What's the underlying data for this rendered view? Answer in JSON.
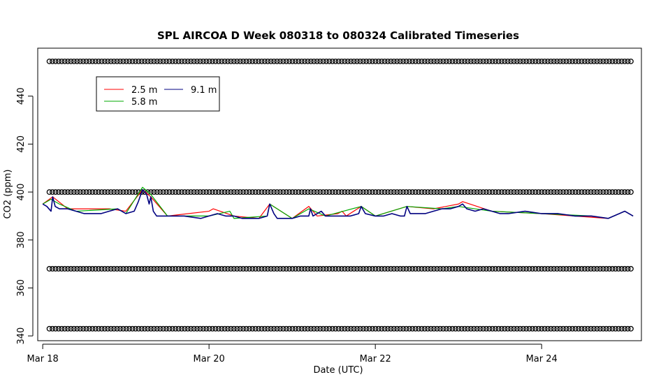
{
  "chart_data": {
    "type": "line",
    "title": "SPL AIRCOA D  Week 080318 to 080324  Calibrated Timeseries",
    "xlabel": "Date (UTC)",
    "ylabel": "CO2 (ppm)",
    "xlim_days": [
      17.94,
      25.2
    ],
    "ylim": [
      338,
      460
    ],
    "x_ticks": [
      {
        "day": 18,
        "label": "Mar 18"
      },
      {
        "day": 20,
        "label": "Mar 20"
      },
      {
        "day": 22,
        "label": "Mar 22"
      },
      {
        "day": 24,
        "label": "Mar 24"
      }
    ],
    "y_ticks": [
      340,
      360,
      380,
      400,
      420,
      440
    ],
    "legend": {
      "position": "top-left",
      "entries": [
        {
          "label": "2.5 m",
          "color": "#ff0000"
        },
        {
          "label": "9.1 m",
          "color": "#000080"
        },
        {
          "label": "5.8 m",
          "color": "#00aa00"
        }
      ]
    },
    "reference_markers": {
      "symbol": "open-circle",
      "x_start_day": 18.08,
      "x_end_day": 25.1,
      "rows": [
        {
          "value": 454.5
        },
        {
          "value": 400
        },
        {
          "value": 368
        },
        {
          "value": 343
        }
      ]
    },
    "series": [
      {
        "name": "9.1 m",
        "color": "#000080",
        "points": [
          [
            18.0,
            395
          ],
          [
            18.05,
            394
          ],
          [
            18.1,
            392
          ],
          [
            18.12,
            398
          ],
          [
            18.15,
            394
          ],
          [
            18.2,
            393
          ],
          [
            18.3,
            393
          ],
          [
            18.4,
            392
          ],
          [
            18.5,
            391
          ],
          [
            18.6,
            391
          ],
          [
            18.7,
            391
          ],
          [
            18.8,
            392
          ],
          [
            18.9,
            393
          ],
          [
            19.0,
            391
          ],
          [
            19.1,
            392
          ],
          [
            19.15,
            396
          ],
          [
            19.2,
            401
          ],
          [
            19.25,
            399
          ],
          [
            19.28,
            395
          ],
          [
            19.3,
            398
          ],
          [
            19.33,
            392
          ],
          [
            19.37,
            390
          ],
          [
            19.5,
            390
          ],
          [
            19.7,
            390
          ],
          [
            19.9,
            389
          ],
          [
            20.0,
            390
          ],
          [
            20.1,
            391
          ],
          [
            20.2,
            390
          ],
          [
            20.3,
            390
          ],
          [
            20.4,
            389
          ],
          [
            20.5,
            389
          ],
          [
            20.6,
            389
          ],
          [
            20.7,
            390
          ],
          [
            20.73,
            395
          ],
          [
            20.78,
            391
          ],
          [
            20.82,
            389
          ],
          [
            21.0,
            389
          ],
          [
            21.1,
            390
          ],
          [
            21.2,
            390
          ],
          [
            21.22,
            393
          ],
          [
            21.25,
            390
          ],
          [
            21.35,
            392
          ],
          [
            21.4,
            390
          ],
          [
            21.5,
            390
          ],
          [
            21.6,
            390
          ],
          [
            21.7,
            390
          ],
          [
            21.8,
            391
          ],
          [
            21.83,
            394
          ],
          [
            21.88,
            391
          ],
          [
            22.0,
            390
          ],
          [
            22.1,
            390
          ],
          [
            22.2,
            391
          ],
          [
            22.3,
            390
          ],
          [
            22.35,
            390
          ],
          [
            22.38,
            394
          ],
          [
            22.42,
            391
          ],
          [
            22.5,
            391
          ],
          [
            22.6,
            391
          ],
          [
            22.7,
            392
          ],
          [
            22.8,
            393
          ],
          [
            22.9,
            393
          ],
          [
            23.0,
            394
          ],
          [
            23.05,
            395
          ],
          [
            23.1,
            393
          ],
          [
            23.2,
            392
          ],
          [
            23.3,
            393
          ],
          [
            23.4,
            392
          ],
          [
            23.5,
            391
          ],
          [
            23.6,
            391
          ],
          [
            23.8,
            392
          ],
          [
            24.0,
            391
          ],
          [
            24.2,
            391
          ],
          [
            24.4,
            390
          ],
          [
            24.6,
            390
          ],
          [
            24.8,
            389
          ],
          [
            25.0,
            392
          ],
          [
            25.1,
            390
          ]
        ]
      },
      {
        "name": "2.5 m",
        "color": "#ff0000",
        "points": [
          [
            18.0,
            395
          ],
          [
            18.12,
            398
          ],
          [
            18.3,
            393
          ],
          [
            18.8,
            393
          ],
          [
            19.0,
            392
          ],
          [
            19.2,
            401
          ],
          [
            19.3,
            398
          ],
          [
            19.5,
            390
          ],
          [
            20.0,
            392
          ],
          [
            20.05,
            393
          ],
          [
            20.3,
            390
          ],
          [
            20.6,
            389
          ],
          [
            20.73,
            395
          ],
          [
            21.0,
            389
          ],
          [
            21.2,
            394
          ],
          [
            21.3,
            390
          ],
          [
            21.55,
            391
          ],
          [
            21.6,
            392
          ],
          [
            21.65,
            390
          ],
          [
            21.83,
            394
          ],
          [
            22.0,
            390
          ],
          [
            22.38,
            394
          ],
          [
            22.7,
            393
          ],
          [
            23.0,
            395
          ],
          [
            23.05,
            396
          ],
          [
            23.4,
            392
          ],
          [
            24.0,
            391
          ],
          [
            24.8,
            389
          ],
          [
            25.0,
            392
          ],
          [
            25.1,
            390
          ]
        ]
      },
      {
        "name": "5.8 m",
        "color": "#00aa00",
        "points": [
          [
            18.0,
            395
          ],
          [
            18.1,
            397
          ],
          [
            18.2,
            395
          ],
          [
            18.4,
            392
          ],
          [
            18.9,
            393
          ],
          [
            19.0,
            391
          ],
          [
            19.2,
            402
          ],
          [
            19.3,
            399
          ],
          [
            19.5,
            390
          ],
          [
            20.0,
            390
          ],
          [
            20.25,
            392
          ],
          [
            20.3,
            389
          ],
          [
            20.7,
            390
          ],
          [
            20.73,
            395
          ],
          [
            21.0,
            389
          ],
          [
            21.2,
            393
          ],
          [
            21.4,
            390
          ],
          [
            21.83,
            394
          ],
          [
            22.0,
            390
          ],
          [
            22.38,
            394
          ],
          [
            22.8,
            393
          ],
          [
            23.0,
            394
          ],
          [
            23.4,
            392
          ],
          [
            24.0,
            391
          ],
          [
            24.6,
            390
          ],
          [
            24.8,
            389
          ],
          [
            25.0,
            392
          ],
          [
            25.1,
            390
          ]
        ]
      }
    ]
  }
}
